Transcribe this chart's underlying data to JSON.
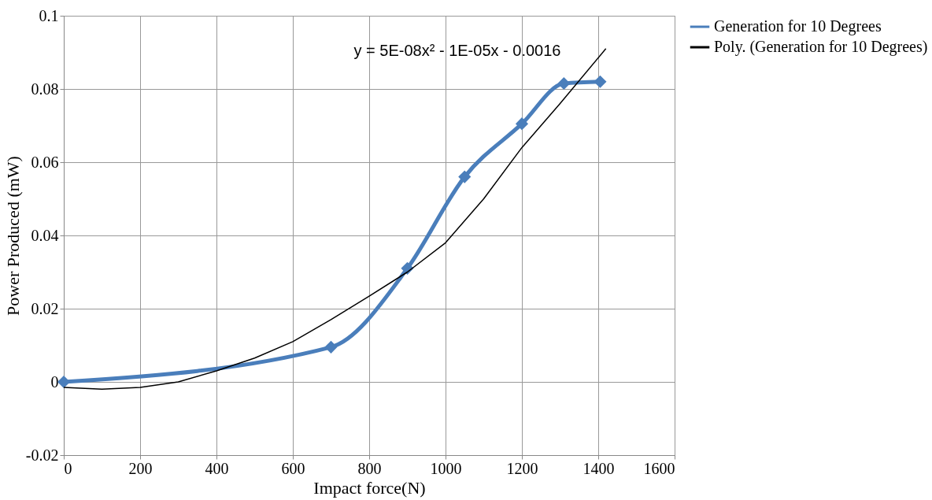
{
  "chart_data": {
    "type": "line",
    "xlabel": "Impact force(N)",
    "ylabel": "Power Produced (mW)",
    "xlim": [
      0,
      1600
    ],
    "xticks": [
      0,
      200,
      400,
      600,
      800,
      1000,
      1200,
      1400,
      1600
    ],
    "ylim": [
      -0.02,
      0.1
    ],
    "yticks": [
      -0.02,
      0,
      0.02,
      0.04,
      0.06,
      0.08,
      0.1
    ],
    "grid": true,
    "legend": "right",
    "series": [
      {
        "name": "Generation for 10 Degrees",
        "color": "#4a7ebb",
        "marker": "diamond",
        "x": [
          0,
          700,
          900,
          1050,
          1200,
          1310,
          1405
        ],
        "values": [
          0,
          0.0095,
          0.031,
          0.056,
          0.0705,
          0.0815,
          0.082
        ]
      },
      {
        "name": "Poly. (Generation for 10 Degrees)",
        "color": "#000000",
        "marker": "none",
        "x": [
          0,
          100,
          200,
          300,
          400,
          500,
          600,
          700,
          800,
          900,
          1000,
          1100,
          1200,
          1300,
          1420
        ],
        "values": [
          -0.0015,
          -0.002,
          -0.0015,
          0,
          0.003,
          0.0065,
          0.011,
          0.017,
          0.0234,
          0.03,
          0.038,
          0.05,
          0.064,
          0.076,
          0.091
        ]
      }
    ],
    "annotations": [
      "y = 5E-08x² - 1E-05x - 0.0016"
    ]
  }
}
